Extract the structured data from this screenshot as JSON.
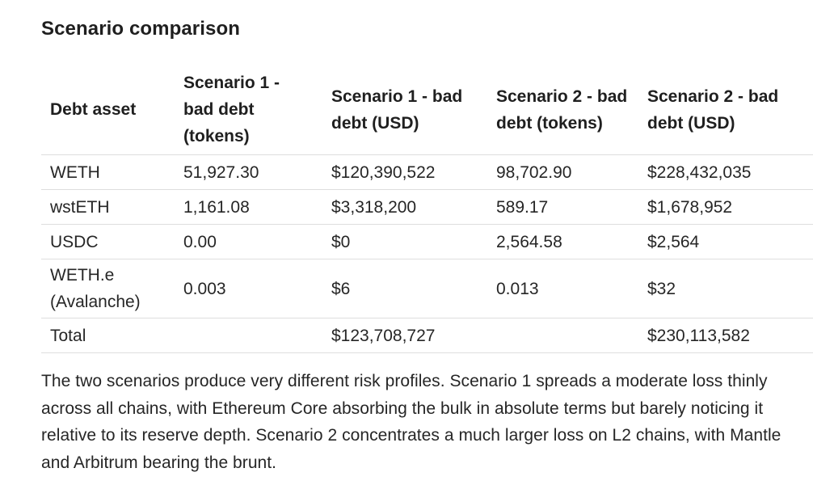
{
  "heading": "Scenario comparison",
  "table": {
    "headers": [
      "Debt asset",
      "Scenario 1 - bad debt (tokens)",
      "Scenario 1 - bad debt (USD)",
      "Scenario 2 - bad debt (tokens)",
      "Scenario 2 - bad debt (USD)"
    ],
    "rows": [
      [
        "WETH",
        "51,927.30",
        "$120,390,522",
        "98,702.90",
        "$228,432,035"
      ],
      [
        "wstETH",
        "1,161.08",
        "$3,318,200",
        "589.17",
        "$1,678,952"
      ],
      [
        "USDC",
        "0.00",
        "$0",
        "2,564.58",
        "$2,564"
      ],
      [
        "WETH.e (Avalanche)",
        "0.003",
        "$6",
        "0.013",
        "$32"
      ],
      [
        "Total",
        "",
        "$123,708,727",
        "",
        "$230,113,582"
      ]
    ]
  },
  "paragraph": "The two scenarios produce very different risk profiles. Scenario 1 spreads a moderate loss thinly across all chains, with Ethereum Core absorbing the bulk in absolute terms but barely noticing it relative to its reserve depth. Scenario 2 concentrates a much larger loss on L2 chains, with Mantle and Arbitrum bearing the brunt."
}
